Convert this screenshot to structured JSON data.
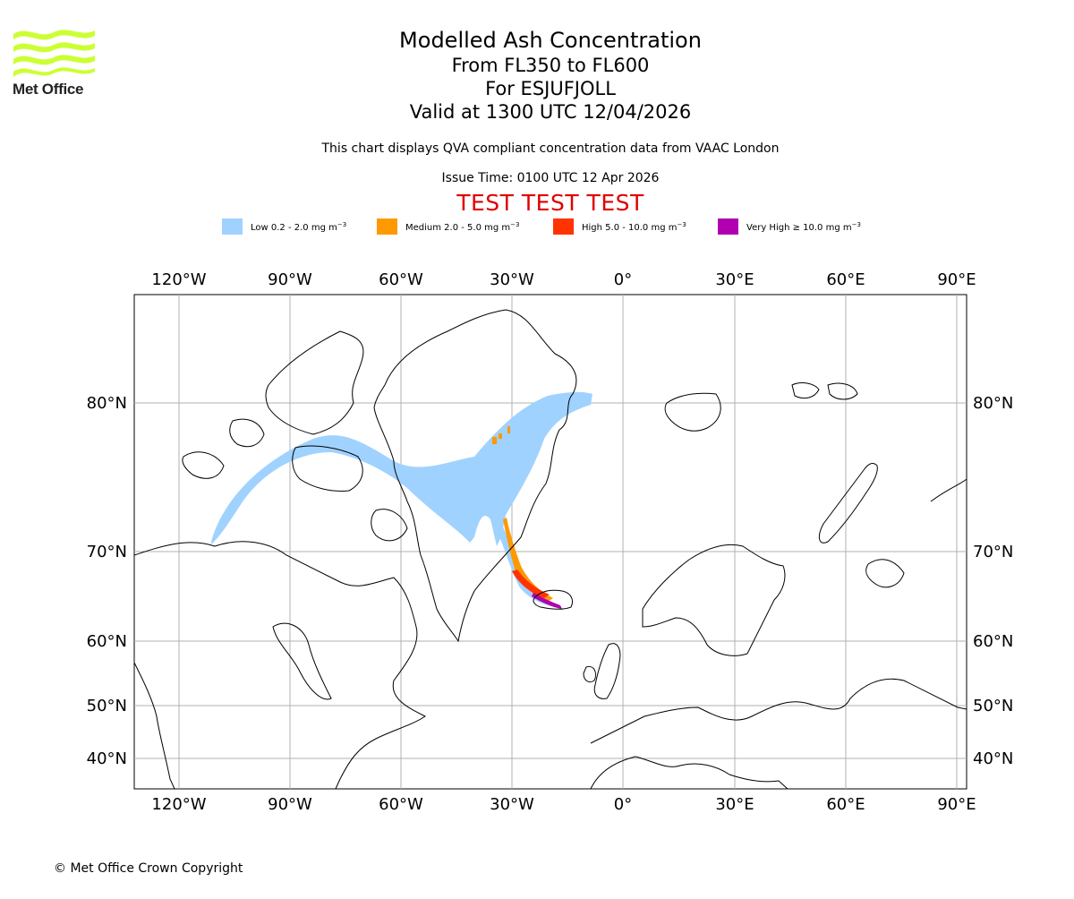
{
  "header": {
    "logo_text": "Met Office",
    "title": "Modelled Ash Concentration",
    "flight_levels": "From FL350 to FL600",
    "volcano": "For ESJUFJOLL",
    "valid_time": "Valid at 1300 UTC 12/04/2026",
    "description": "This chart displays QVA compliant concentration data from VAAC London",
    "issue_time": "Issue Time: 0100 UTC 12 Apr 2026",
    "test_banner": "TEST TEST TEST"
  },
  "legend": [
    {
      "label": "Low 0.2 - 2.0 mg m",
      "unit_exp": "−3",
      "color": "#a0d2ff"
    },
    {
      "label": "Medium 2.0 - 5.0 mg m",
      "unit_exp": "−3",
      "color": "#ff9900"
    },
    {
      "label": "High 5.0 - 10.0 mg m",
      "unit_exp": "−3",
      "color": "#ff3300"
    },
    {
      "label": "Very High  ≥  10.0 mg m",
      "unit_exp": "−3",
      "color": "#b000b0"
    }
  ],
  "map": {
    "lon_labels": [
      "120°W",
      "90°W",
      "60°W",
      "30°W",
      "0°",
      "30°E",
      "60°E",
      "90°E"
    ],
    "lat_labels": [
      "80°N",
      "70°N",
      "60°N",
      "50°N",
      "40°N"
    ],
    "grid": true
  },
  "footer": {
    "copyright": "© Met Office Crown Copyright"
  },
  "colors": {
    "coastline": "#000000",
    "grid": "#b0b0b0",
    "test_banner": "#e00000",
    "logo": "#ccff33"
  }
}
